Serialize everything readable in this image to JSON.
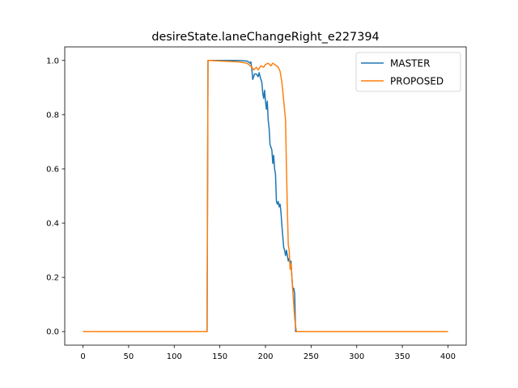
{
  "chart_data": {
    "type": "line",
    "title": "desireState.laneChangeRight_e227394",
    "xlabel": "",
    "ylabel": "",
    "xlim": [
      -20,
      420
    ],
    "ylim": [
      -0.05,
      1.05
    ],
    "xticks": [
      0,
      50,
      100,
      150,
      200,
      250,
      300,
      350,
      400
    ],
    "yticks": [
      0.0,
      0.2,
      0.4,
      0.6,
      0.8,
      1.0
    ],
    "xtick_labels": [
      "0",
      "50",
      "100",
      "150",
      "200",
      "250",
      "300",
      "350",
      "400"
    ],
    "ytick_labels": [
      "0.0",
      "0.2",
      "0.4",
      "0.6",
      "0.8",
      "1.0"
    ],
    "grid": false,
    "legend_position": "upper right",
    "series": [
      {
        "name": "MASTER",
        "color": "#1f77b4",
        "points": [
          [
            0,
            0.0
          ],
          [
            136,
            0.0
          ],
          [
            137,
            1.0
          ],
          [
            150,
            1.0
          ],
          [
            170,
            1.0
          ],
          [
            180,
            0.998
          ],
          [
            183,
            0.99
          ],
          [
            184,
            0.995
          ],
          [
            185,
            0.97
          ],
          [
            186,
            0.93
          ],
          [
            188,
            0.95
          ],
          [
            190,
            0.95
          ],
          [
            192,
            0.94
          ],
          [
            193,
            0.955
          ],
          [
            195,
            0.93
          ],
          [
            196,
            0.92
          ],
          [
            197,
            0.88
          ],
          [
            198,
            0.86
          ],
          [
            199,
            0.89
          ],
          [
            200,
            0.85
          ],
          [
            201,
            0.82
          ],
          [
            202,
            0.85
          ],
          [
            203,
            0.78
          ],
          [
            204,
            0.75
          ],
          [
            205,
            0.69
          ],
          [
            206,
            0.68
          ],
          [
            207,
            0.67
          ],
          [
            208,
            0.62
          ],
          [
            209,
            0.65
          ],
          [
            210,
            0.6
          ],
          [
            211,
            0.58
          ],
          [
            212,
            0.48
          ],
          [
            213,
            0.47
          ],
          [
            214,
            0.48
          ],
          [
            215,
            0.46
          ],
          [
            216,
            0.47
          ],
          [
            217,
            0.44
          ],
          [
            218,
            0.39
          ],
          [
            219,
            0.35
          ],
          [
            220,
            0.31
          ],
          [
            221,
            0.3
          ],
          [
            222,
            0.28
          ],
          [
            223,
            0.3
          ],
          [
            224,
            0.28
          ],
          [
            225,
            0.26
          ],
          [
            226,
            0.27
          ],
          [
            227,
            0.25
          ],
          [
            228,
            0.26
          ],
          [
            229,
            0.2
          ],
          [
            230,
            0.15
          ],
          [
            231,
            0.16
          ],
          [
            232,
            0.14
          ],
          [
            233,
            0.0
          ],
          [
            400,
            0.0
          ]
        ]
      },
      {
        "name": "PROPOSED",
        "color": "#ff7f0e",
        "points": [
          [
            0,
            0.0
          ],
          [
            136,
            0.0
          ],
          [
            137,
            1.0
          ],
          [
            170,
            0.995
          ],
          [
            180,
            0.99
          ],
          [
            185,
            0.975
          ],
          [
            187,
            0.965
          ],
          [
            190,
            0.975
          ],
          [
            192,
            0.965
          ],
          [
            195,
            0.98
          ],
          [
            198,
            0.975
          ],
          [
            200,
            0.985
          ],
          [
            203,
            0.99
          ],
          [
            206,
            0.98
          ],
          [
            208,
            0.99
          ],
          [
            210,
            0.985
          ],
          [
            212,
            0.98
          ],
          [
            214,
            0.975
          ],
          [
            216,
            0.96
          ],
          [
            218,
            0.92
          ],
          [
            220,
            0.85
          ],
          [
            222,
            0.78
          ],
          [
            223,
            0.6
          ],
          [
            224,
            0.45
          ],
          [
            225,
            0.32
          ],
          [
            226,
            0.3
          ],
          [
            227,
            0.23
          ],
          [
            228,
            0.25
          ],
          [
            229,
            0.2
          ],
          [
            230,
            0.15
          ],
          [
            231,
            0.1
          ],
          [
            232,
            0.05
          ],
          [
            233,
            0.02
          ],
          [
            234,
            0.0
          ],
          [
            400,
            0.0
          ]
        ]
      }
    ]
  }
}
